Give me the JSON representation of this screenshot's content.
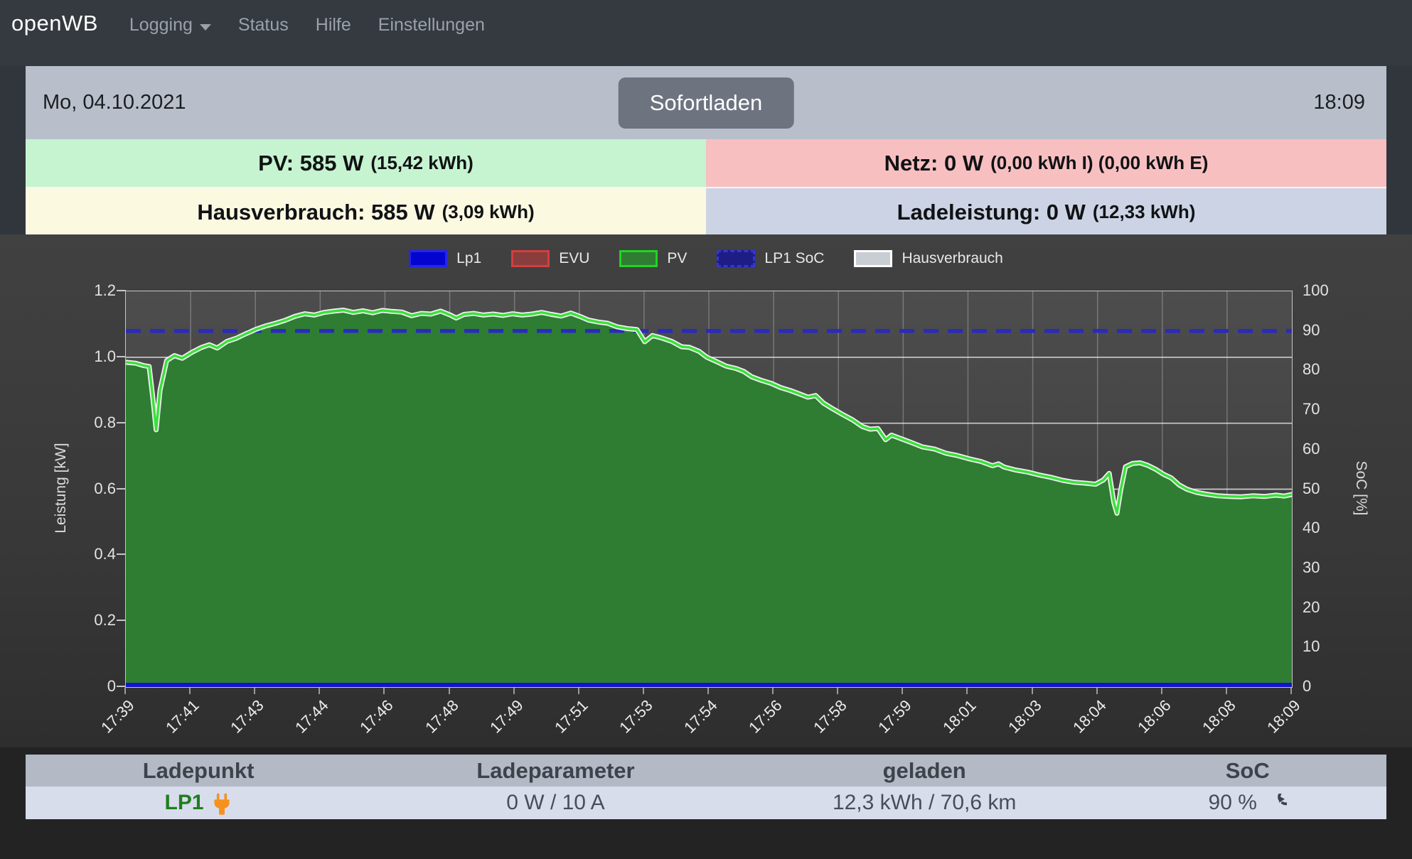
{
  "navbar": {
    "brand": "openWB",
    "items": [
      {
        "label": "Logging"
      },
      {
        "label": "Status"
      },
      {
        "label": "Hilfe"
      },
      {
        "label": "Einstellungen"
      }
    ]
  },
  "datebar": {
    "date": "Mo, 04.10.2021",
    "button_label": "Sofortladen",
    "time": "18:09"
  },
  "status": {
    "pv": {
      "main": "PV: 585 W",
      "detail": "(15,42 kWh)",
      "bg": "#c6f4d0"
    },
    "netz": {
      "main": "Netz: 0 W",
      "detail": "(0,00 kWh I) (0,00 kWh E)",
      "bg": "#f8bfc1"
    },
    "haus": {
      "main": "Hausverbrauch: 585 W",
      "detail": "(3,09 kWh)",
      "bg": "#fcf9e1"
    },
    "lade": {
      "main": "Ladeleistung: 0 W",
      "detail": "(12,33 kWh)",
      "bg": "#ccd3e4"
    }
  },
  "chart_data": {
    "type": "area",
    "title": "",
    "x_axis": {
      "tick_labels": [
        "17:39",
        "17:41",
        "17:43",
        "17:44",
        "17:46",
        "17:48",
        "17:49",
        "17:51",
        "17:53",
        "17:54",
        "17:56",
        "17:58",
        "17:59",
        "18:01",
        "18:03",
        "18:04",
        "18:06",
        "18:08",
        "18:09"
      ],
      "range_minutes": [
        0,
        30
      ]
    },
    "y_left": {
      "label": "Leistung [kW]",
      "ticks": [
        "1.2",
        "1.0",
        "0.8",
        "0.6",
        "0.4",
        "0.2",
        "0"
      ],
      "lim": [
        0,
        1.2
      ]
    },
    "y_right": {
      "label": "SoC [%]",
      "ticks": [
        "100",
        "90",
        "80",
        "70",
        "60",
        "50",
        "40",
        "30",
        "20",
        "10",
        "0"
      ],
      "lim": [
        0,
        100
      ]
    },
    "grid": {
      "h_values": [
        0.2,
        0.4,
        0.6,
        0.8,
        1.0
      ],
      "v_at_every_tick": true
    },
    "legend": [
      {
        "label": "Lp1",
        "fill": "#0404cf",
        "border": "#2525e8",
        "style": "solid"
      },
      {
        "label": "EVU",
        "fill": "#8a3d3d",
        "border": "#d23f3f",
        "style": "solid"
      },
      {
        "label": "PV",
        "fill": "#2e7d32",
        "border": "#22d422",
        "style": "solid"
      },
      {
        "label": "LP1 SoC",
        "fill": "#1d1d85",
        "border": "#3434d6",
        "style": "dashed"
      },
      {
        "label": "Hausverbrauch",
        "fill": "#c9cdd4",
        "border": "#ffffff",
        "style": "solid"
      }
    ],
    "series": [
      {
        "name": "PV",
        "type": "area",
        "unit": "kW",
        "color_fill": "#2e7d32",
        "color_line": "#38e238",
        "points": [
          [
            0,
            0.985
          ],
          [
            0.25,
            0.982
          ],
          [
            0.45,
            0.975
          ],
          [
            0.6,
            0.972
          ],
          [
            0.7,
            0.87
          ],
          [
            0.78,
            0.78
          ],
          [
            0.88,
            0.9
          ],
          [
            1.05,
            0.99
          ],
          [
            1.25,
            1.005
          ],
          [
            1.45,
            0.997
          ],
          [
            1.7,
            1.015
          ],
          [
            1.95,
            1.03
          ],
          [
            2.15,
            1.038
          ],
          [
            2.35,
            1.028
          ],
          [
            2.6,
            1.048
          ],
          [
            2.85,
            1.058
          ],
          [
            3.1,
            1.072
          ],
          [
            3.35,
            1.085
          ],
          [
            3.6,
            1.095
          ],
          [
            3.85,
            1.103
          ],
          [
            4.1,
            1.112
          ],
          [
            4.35,
            1.124
          ],
          [
            4.6,
            1.132
          ],
          [
            4.85,
            1.128
          ],
          [
            5.1,
            1.136
          ],
          [
            5.35,
            1.14
          ],
          [
            5.6,
            1.143
          ],
          [
            5.85,
            1.136
          ],
          [
            6.1,
            1.141
          ],
          [
            6.35,
            1.135
          ],
          [
            6.6,
            1.142
          ],
          [
            6.85,
            1.139
          ],
          [
            7.1,
            1.137
          ],
          [
            7.35,
            1.126
          ],
          [
            7.6,
            1.133
          ],
          [
            7.85,
            1.131
          ],
          [
            8.1,
            1.14
          ],
          [
            8.35,
            1.128
          ],
          [
            8.5,
            1.119
          ],
          [
            8.7,
            1.13
          ],
          [
            8.95,
            1.133
          ],
          [
            9.2,
            1.128
          ],
          [
            9.45,
            1.131
          ],
          [
            9.7,
            1.127
          ],
          [
            9.95,
            1.132
          ],
          [
            10.2,
            1.128
          ],
          [
            10.45,
            1.131
          ],
          [
            10.7,
            1.136
          ],
          [
            10.95,
            1.13
          ],
          [
            11.2,
            1.125
          ],
          [
            11.45,
            1.134
          ],
          [
            11.7,
            1.123
          ],
          [
            11.9,
            1.113
          ],
          [
            12.15,
            1.107
          ],
          [
            12.4,
            1.103
          ],
          [
            12.65,
            1.092
          ],
          [
            12.9,
            1.087
          ],
          [
            13.15,
            1.084
          ],
          [
            13.35,
            1.047
          ],
          [
            13.55,
            1.066
          ],
          [
            13.8,
            1.058
          ],
          [
            14.05,
            1.048
          ],
          [
            14.3,
            1.032
          ],
          [
            14.5,
            1.03
          ],
          [
            14.75,
            1.018
          ],
          [
            14.95,
            1.0
          ],
          [
            15.2,
            0.987
          ],
          [
            15.45,
            0.973
          ],
          [
            15.7,
            0.966
          ],
          [
            15.9,
            0.957
          ],
          [
            16.1,
            0.941
          ],
          [
            16.35,
            0.93
          ],
          [
            16.6,
            0.921
          ],
          [
            16.85,
            0.908
          ],
          [
            17.1,
            0.899
          ],
          [
            17.35,
            0.888
          ],
          [
            17.55,
            0.879
          ],
          [
            17.75,
            0.884
          ],
          [
            17.95,
            0.861
          ],
          [
            18.2,
            0.843
          ],
          [
            18.45,
            0.826
          ],
          [
            18.7,
            0.81
          ],
          [
            18.95,
            0.79
          ],
          [
            19.15,
            0.782
          ],
          [
            19.35,
            0.784
          ],
          [
            19.55,
            0.75
          ],
          [
            19.7,
            0.764
          ],
          [
            19.95,
            0.753
          ],
          [
            20.2,
            0.742
          ],
          [
            20.5,
            0.728
          ],
          [
            20.8,
            0.722
          ],
          [
            21.1,
            0.709
          ],
          [
            21.4,
            0.702
          ],
          [
            21.7,
            0.692
          ],
          [
            22.0,
            0.684
          ],
          [
            22.3,
            0.671
          ],
          [
            22.45,
            0.677
          ],
          [
            22.6,
            0.667
          ],
          [
            22.9,
            0.658
          ],
          [
            23.2,
            0.652
          ],
          [
            23.5,
            0.643
          ],
          [
            23.8,
            0.636
          ],
          [
            24.1,
            0.627
          ],
          [
            24.4,
            0.621
          ],
          [
            24.7,
            0.618
          ],
          [
            24.95,
            0.615
          ],
          [
            25.15,
            0.628
          ],
          [
            25.3,
            0.648
          ],
          [
            25.42,
            0.56
          ],
          [
            25.5,
            0.527
          ],
          [
            25.6,
            0.6
          ],
          [
            25.72,
            0.668
          ],
          [
            25.9,
            0.678
          ],
          [
            26.1,
            0.68
          ],
          [
            26.3,
            0.672
          ],
          [
            26.5,
            0.66
          ],
          [
            26.7,
            0.645
          ],
          [
            26.9,
            0.634
          ],
          [
            27.1,
            0.613
          ],
          [
            27.3,
            0.6
          ],
          [
            27.55,
            0.59
          ],
          [
            27.8,
            0.585
          ],
          [
            28.1,
            0.58
          ],
          [
            28.4,
            0.578
          ],
          [
            28.7,
            0.577
          ],
          [
            29.0,
            0.58
          ],
          [
            29.3,
            0.578
          ],
          [
            29.6,
            0.582
          ],
          [
            29.8,
            0.579
          ],
          [
            30,
            0.584
          ]
        ]
      },
      {
        "name": "Hausverbrauch",
        "type": "line",
        "unit": "kW",
        "color_line": "#f0f0f0",
        "overlaps_pv": true
      },
      {
        "name": "Lp1",
        "type": "line",
        "unit": "kW",
        "color_line": "#1414cc",
        "constant": 0
      },
      {
        "name": "EVU",
        "type": "line",
        "unit": "kW",
        "color_line": "#8a3d3d",
        "constant": 0
      },
      {
        "name": "LP1 SoC",
        "type": "dashed-line",
        "unit": "%",
        "color_line": "#2a2ac0",
        "constant": 90
      }
    ]
  },
  "table": {
    "headers": [
      "Ladepunkt",
      "Ladeparameter",
      "geladen",
      "SoC"
    ],
    "row": {
      "ladepunkt": "LP1",
      "ladeparameter": "0 W / 10 A",
      "geladen": "12,3 kWh / 70,6 km",
      "soc": "90 %"
    }
  },
  "colors": {
    "navbar_bg": "#343a40",
    "datebar_bg": "#b9bfca",
    "button_bg": "#6d7480",
    "plug_icon": "#f5921e",
    "lp1_green": "#1e7e1e"
  }
}
